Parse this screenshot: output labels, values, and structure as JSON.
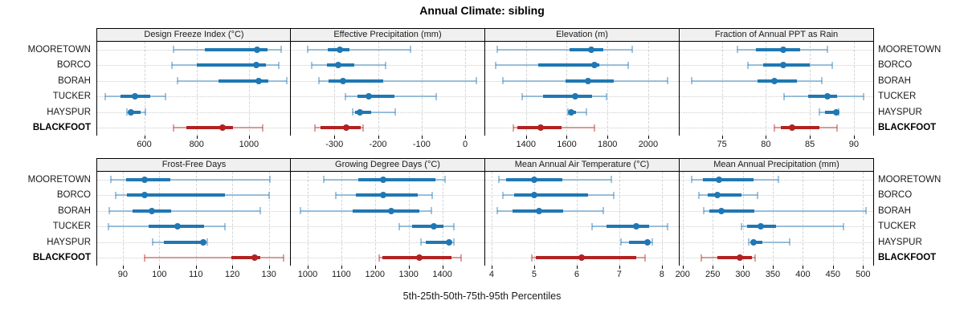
{
  "title": "Annual Climate: sibling",
  "axis_label": "5th-25th-50th-75th-95th Percentiles",
  "categories": [
    "MOORETOWN",
    "BORCO",
    "BORAH",
    "TUCKER",
    "HAYSPUR",
    "BLACKFOOT"
  ],
  "highlight_category": "BLACKFOOT",
  "colors": {
    "blue": "#1f78b4",
    "blue_light": "rgba(31,120,180,0.42)",
    "red": "#b22222",
    "red_light": "rgba(178,34,34,0.42)",
    "header_bg": "#f0f0f0",
    "panel_border": "#000000",
    "gridline": "#cccccc"
  },
  "chart_data": {
    "type": "scatter",
    "subtype": "percentile-interval-dotplot",
    "title": "Annual Climate: sibling",
    "xlabel": "5th-25th-50th-75th-95th Percentiles",
    "legend_position": "none",
    "grid": true,
    "percentiles_order": [
      5,
      25,
      50,
      75,
      95
    ],
    "row_categories": [
      "MOORETOWN",
      "BORCO",
      "BORAH",
      "TUCKER",
      "HAYSPUR",
      "BLACKFOOT"
    ],
    "panels": [
      {
        "title": "Design Freeze Index (°C)",
        "xlim": [
          420,
          1160
        ],
        "ticks": [
          600,
          800,
          1000
        ],
        "series": [
          {
            "name": "MOORETOWN",
            "percentiles": [
              713,
              830,
              1032,
              1070,
              1124
            ]
          },
          {
            "name": "BORCO",
            "percentiles": [
              705,
              800,
              1027,
              1065,
              1115
            ]
          },
          {
            "name": "BORAH",
            "percentiles": [
              727,
              885,
              1037,
              1075,
              1145
            ]
          },
          {
            "name": "TUCKER",
            "percentiles": [
              450,
              510,
              564,
              623,
              681
            ]
          },
          {
            "name": "HAYSPUR",
            "percentiles": [
              533,
              540,
              549,
              585,
              603
            ]
          },
          {
            "name": "BLACKFOOT",
            "percentiles": [
              711,
              760,
              899,
              938,
              1052
            ]
          }
        ]
      },
      {
        "title": "Effective Precipitation (mm)",
        "xlim": [
          -400,
          44
        ],
        "ticks": [
          -300,
          -200,
          -100,
          0
        ],
        "series": [
          {
            "name": "MOORETOWN",
            "percentiles": [
              -361,
              -315,
              -287,
              -265,
              -125
            ]
          },
          {
            "name": "BORCO",
            "percentiles": [
              -353,
              -318,
              -291,
              -254,
              -183
            ]
          },
          {
            "name": "BORAH",
            "percentiles": [
              -335,
              -313,
              -280,
              -189,
              26
            ]
          },
          {
            "name": "TUCKER",
            "percentiles": [
              -275,
              -247,
              -221,
              -162,
              -66
            ]
          },
          {
            "name": "HAYSPUR",
            "percentiles": [
              -258,
              -253,
              -242,
              -216,
              -161
            ]
          },
          {
            "name": "BLACKFOOT",
            "percentiles": [
              -344,
              -331,
              -272,
              -240,
              -234
            ]
          }
        ]
      },
      {
        "title": "Elevation (m)",
        "xlim": [
          1200,
          2150
        ],
        "ticks": [
          1400,
          1600,
          1800,
          2000
        ],
        "series": [
          {
            "name": "MOORETOWN",
            "percentiles": [
              1260,
              1614,
              1719,
              1778,
              1922
            ]
          },
          {
            "name": "BORCO",
            "percentiles": [
              1250,
              1462,
              1735,
              1758,
              1902
            ]
          },
          {
            "name": "BORAH",
            "percentiles": [
              1286,
              1594,
              1706,
              1830,
              2093
            ]
          },
          {
            "name": "TUCKER",
            "percentiles": [
              1382,
              1483,
              1640,
              1725,
              1794
            ]
          },
          {
            "name": "HAYSPUR",
            "percentiles": [
              1607,
              1610,
              1623,
              1647,
              1697
            ]
          },
          {
            "name": "BLACKFOOT",
            "percentiles": [
              1338,
              1358,
              1472,
              1574,
              1735
            ]
          }
        ]
      },
      {
        "title": "Fraction of Annual PPT as Rain",
        "xlim": [
          70.2,
          92.2
        ],
        "ticks": [
          75,
          80,
          85,
          90
        ],
        "series": [
          {
            "name": "MOORETOWN",
            "percentiles": [
              76.8,
              78.9,
              82.0,
              83.9,
              87.0
            ]
          },
          {
            "name": "BORCO",
            "percentiles": [
              78.0,
              79.7,
              82.0,
              85.0,
              87.5
            ]
          },
          {
            "name": "BORAH",
            "percentiles": [
              71.6,
              79.1,
              81.0,
              83.5,
              86.4
            ]
          },
          {
            "name": "TUCKER",
            "percentiles": [
              82.1,
              84.8,
              87.0,
              88.1,
              91.1
            ]
          },
          {
            "name": "HAYSPUR",
            "percentiles": [
              86.1,
              86.7,
              88.0,
              88.2,
              88.3
            ]
          },
          {
            "name": "BLACKFOOT",
            "percentiles": [
              81.0,
              81.7,
              83.0,
              86.1,
              88.1
            ]
          }
        ]
      },
      {
        "title": "Frost-Free Days",
        "xlim": [
          83,
          136
        ],
        "ticks": [
          90,
          100,
          110,
          120,
          130
        ],
        "series": [
          {
            "name": "MOORETOWN",
            "percentiles": [
              86.8,
              91.0,
              96.0,
              103.0,
              130.2
            ]
          },
          {
            "name": "BORCO",
            "percentiles": [
              88.0,
              91.1,
              96.0,
              117.9,
              130.0
            ]
          },
          {
            "name": "BORAH",
            "percentiles": [
              86.2,
              92.6,
              98.0,
              103.2,
              127.6
            ]
          },
          {
            "name": "TUCKER",
            "percentiles": [
              86.0,
              97.1,
              105.0,
              112.2,
              118.0
            ]
          },
          {
            "name": "HAYSPUR",
            "percentiles": [
              98.1,
              101.3,
              112.0,
              112.5,
              113.1
            ]
          },
          {
            "name": "BLACKFOOT",
            "percentiles": [
              96.0,
              119.7,
              126.1,
              127.6,
              134.1
            ]
          }
        ]
      },
      {
        "title": "Growing Degree Days (°C)",
        "xlim": [
          950,
          1525
        ],
        "ticks": [
          1000,
          1100,
          1200,
          1300,
          1400
        ],
        "series": [
          {
            "name": "MOORETOWN",
            "percentiles": [
              1048,
              1150,
              1225,
              1380,
              1408
            ]
          },
          {
            "name": "BORCO",
            "percentiles": [
              1083,
              1144,
              1225,
              1328,
              1370
            ]
          },
          {
            "name": "BORAH",
            "percentiles": [
              979,
              1133,
              1248,
              1332,
              1368
            ]
          },
          {
            "name": "TUCKER",
            "percentiles": [
              1272,
              1310,
              1375,
              1403,
              1435
            ]
          },
          {
            "name": "HAYSPUR",
            "percentiles": [
              1336,
              1352,
              1420,
              1428,
              1434
            ]
          },
          {
            "name": "BLACKFOOT",
            "percentiles": [
              1212,
              1223,
              1332,
              1427,
              1455
            ]
          }
        ]
      },
      {
        "title": "Mean Annual Air Temperature (°C)",
        "xlim": [
          3.85,
          8.4
        ],
        "ticks": [
          4,
          5,
          6,
          7,
          8
        ],
        "series": [
          {
            "name": "MOORETOWN",
            "percentiles": [
              4.18,
              4.34,
              5.0,
              5.66,
              6.82
            ]
          },
          {
            "name": "BORCO",
            "percentiles": [
              4.26,
              4.53,
              5.0,
              6.26,
              6.87
            ]
          },
          {
            "name": "BORAH",
            "percentiles": [
              4.13,
              4.49,
              5.11,
              5.69,
              6.62
            ]
          },
          {
            "name": "TUCKER",
            "percentiles": [
              6.37,
              6.7,
              7.4,
              7.7,
              8.14
            ]
          },
          {
            "name": "HAYSPUR",
            "percentiles": [
              7.04,
              7.23,
              7.67,
              7.73,
              7.77
            ]
          },
          {
            "name": "BLACKFOOT",
            "percentiles": [
              4.95,
              5.03,
              6.12,
              7.4,
              7.6
            ]
          }
        ]
      },
      {
        "title": "Mean Annual Precipitation (mm)",
        "xlim": [
          195,
          517
        ],
        "ticks": [
          200,
          250,
          300,
          350,
          400,
          450,
          500
        ],
        "series": [
          {
            "name": "MOORETOWN",
            "percentiles": [
              215,
              234,
              260,
              318,
              360
            ]
          },
          {
            "name": "BORCO",
            "percentiles": [
              227,
              242,
              258,
              298,
              324
            ]
          },
          {
            "name": "BORAH",
            "percentiles": [
              235,
              244,
              265,
              319,
              505
            ]
          },
          {
            "name": "TUCKER",
            "percentiles": [
              298,
              307,
              330,
              356,
              468
            ]
          },
          {
            "name": "HAYSPUR",
            "percentiles": [
              310,
              314,
              318,
              333,
              378
            ]
          },
          {
            "name": "BLACKFOOT",
            "percentiles": [
              231,
              258,
              295,
              315,
              320
            ]
          }
        ]
      }
    ]
  }
}
